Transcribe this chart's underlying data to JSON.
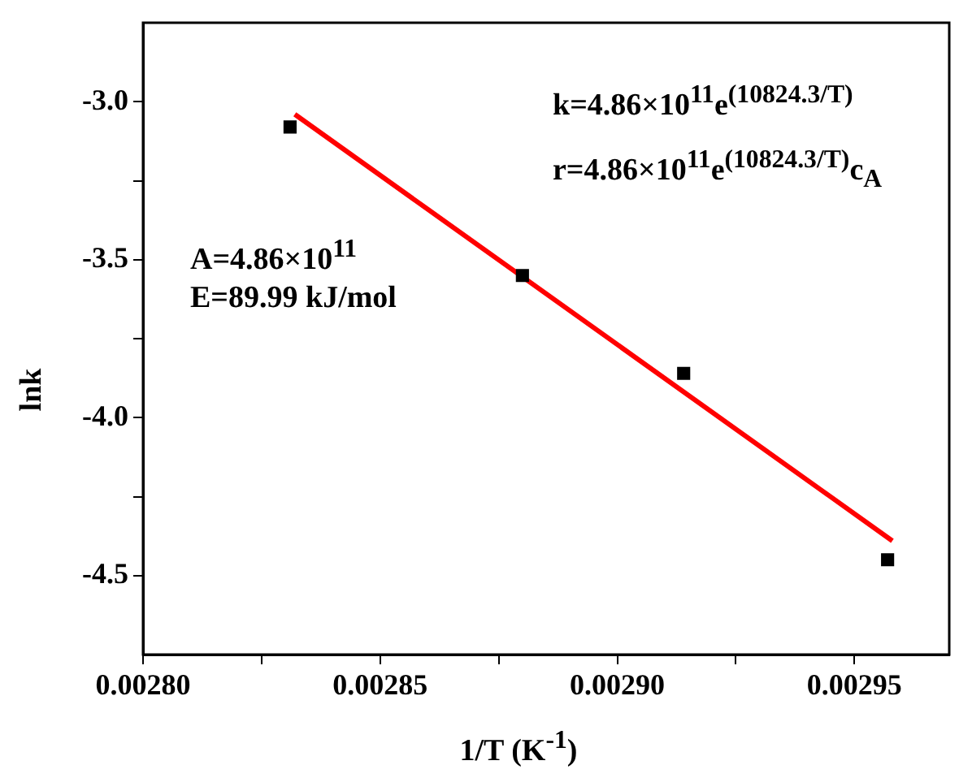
{
  "chart_data": {
    "type": "scatter",
    "xlabel": "1/T (K$^{-1}$)",
    "ylabel": "lnk",
    "xlim": [
      0.0028,
      0.00297
    ],
    "ylim": [
      -4.75,
      -2.75
    ],
    "xticks": [
      {
        "value": 0.0028,
        "label": "0.00280"
      },
      {
        "value": 0.002825,
        "label": null
      },
      {
        "value": 0.00285,
        "label": "0.00285"
      },
      {
        "value": 0.002875,
        "label": null
      },
      {
        "value": 0.0029,
        "label": "0.00290"
      },
      {
        "value": 0.002925,
        "label": null
      },
      {
        "value": 0.00295,
        "label": "0.00295"
      }
    ],
    "yticks": [
      {
        "value": -3,
        "label": "-3.0"
      },
      {
        "value": -3.25,
        "label": null
      },
      {
        "value": -3.5,
        "label": "-3.5"
      },
      {
        "value": -3.75,
        "label": null
      },
      {
        "value": -4,
        "label": "-4.0"
      },
      {
        "value": -4.25,
        "label": null
      },
      {
        "value": -4.5,
        "label": "-4.5"
      }
    ],
    "grid": false,
    "legend": false,
    "series": [
      {
        "color": "#000000",
        "marker": "square",
        "x": [
          0.002831,
          0.00288,
          0.002914,
          0.002957
        ],
        "values": [
          -3.08,
          -3.55,
          -3.86,
          -4.45
        ]
      },
      {
        "type": "line",
        "color": "#ff0000",
        "marker": "none",
        "line_style": "solid",
        "x": [
          0.002832,
          0.002958
        ],
        "values": [
          -3.04,
          -4.39
        ]
      }
    ],
    "annotations": [
      "k=4.86×10$^{11}$e$^{(10824.3/T)}$",
      "r=4.86×10$^{11}$e$^{(10824.3/T)}$c$_{A}$",
      "A=4.86×10$^{11}$",
      "E=89.99 kJ/mol"
    ]
  }
}
